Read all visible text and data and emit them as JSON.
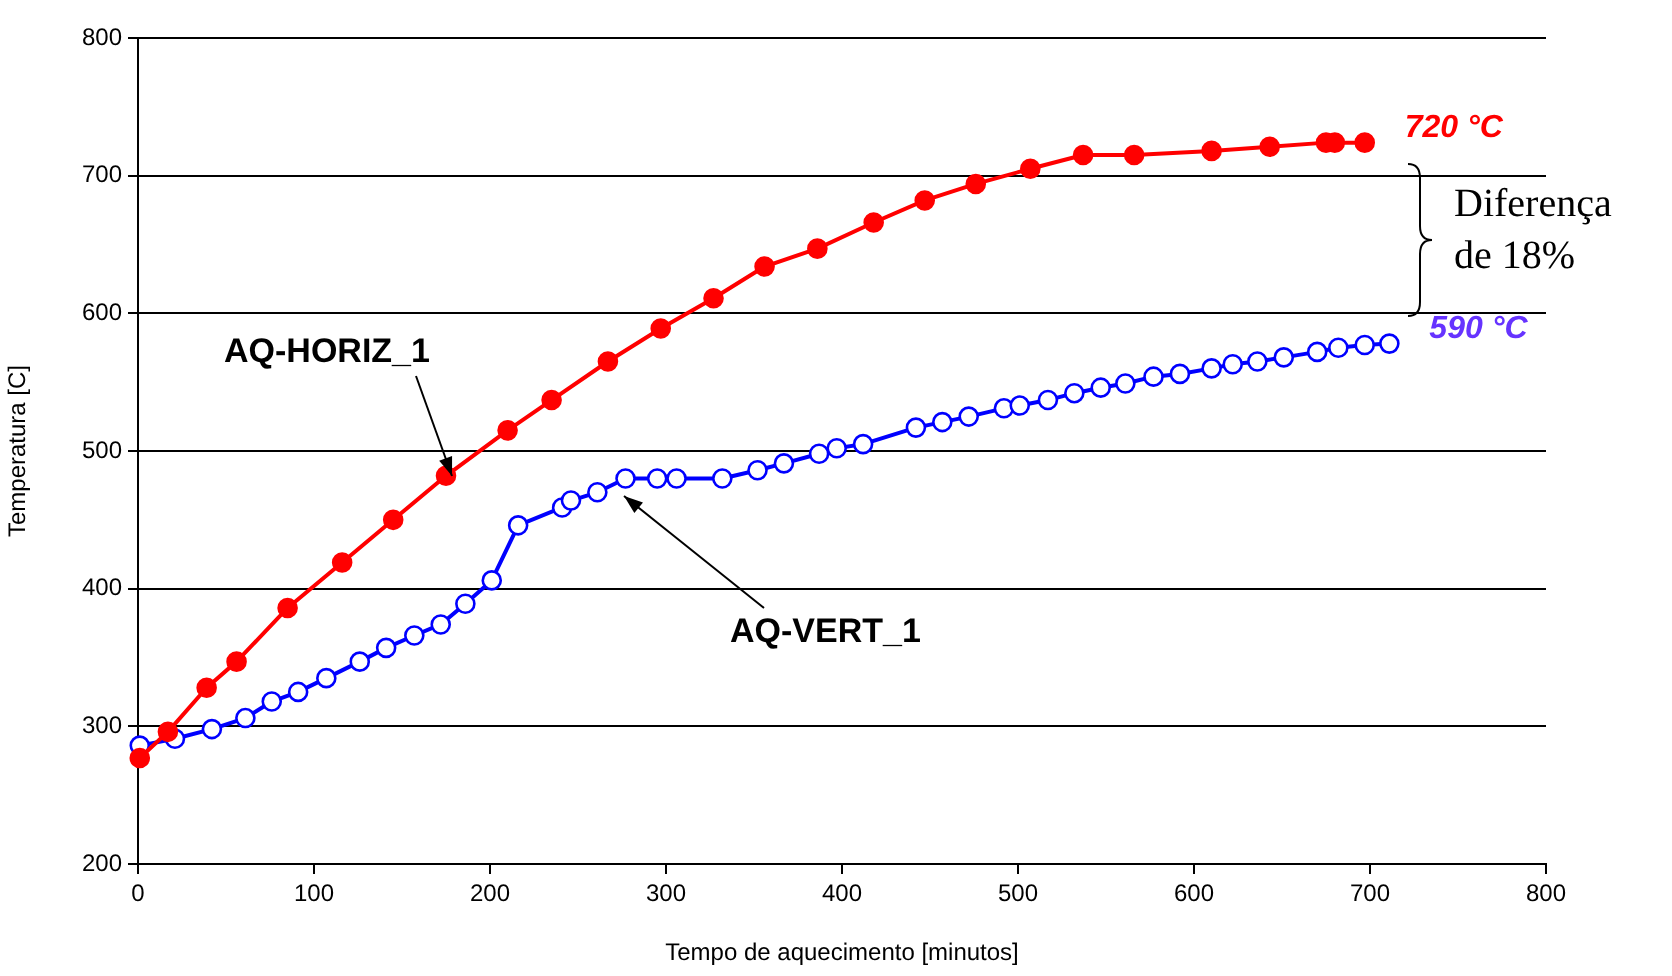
{
  "chart_data": {
    "type": "line",
    "xlabel": "Tempo de aquecimento [minutos]",
    "ylabel": "Temperatura [C]",
    "xlim": [
      0,
      800
    ],
    "xticks": [
      0,
      100,
      200,
      300,
      400,
      500,
      600,
      700,
      800
    ],
    "ylim": [
      200,
      800
    ],
    "yticks": [
      200,
      300,
      400,
      500,
      600,
      700,
      800
    ],
    "grid": "y",
    "legend": false,
    "marker": "circle",
    "line_style": "solid",
    "series": [
      {
        "name": "AQ-HORIZ_1",
        "color": "#ff0000",
        "x": [
          1,
          17,
          39,
          56,
          85,
          116,
          145,
          175,
          210,
          235,
          267,
          297,
          327,
          356,
          386,
          418,
          447,
          476,
          507,
          537,
          566,
          610,
          643,
          675,
          680,
          697
        ],
        "values": [
          277,
          296,
          328,
          347,
          386,
          419,
          450,
          482,
          515,
          537,
          565,
          589,
          611,
          634,
          647,
          666,
          682,
          694,
          705,
          715,
          715,
          718,
          721,
          724,
          724,
          724
        ]
      },
      {
        "name": "AQ-VERT_1",
        "color": "#0000ff",
        "x": [
          1,
          21,
          42,
          61,
          76,
          91,
          107,
          126,
          141,
          157,
          172,
          186,
          201,
          216,
          241,
          246,
          261,
          277,
          295,
          306,
          332,
          352,
          367,
          387,
          397,
          412,
          442,
          457,
          472,
          492,
          501,
          517,
          532,
          547,
          561,
          577,
          592,
          610,
          622,
          636,
          651,
          670,
          682,
          697,
          711
        ],
        "values": [
          286,
          291,
          298,
          306,
          318,
          325,
          335,
          347,
          357,
          366,
          374,
          389,
          406,
          446,
          459,
          464,
          470,
          480,
          480,
          480,
          480,
          486,
          491,
          498,
          502,
          505,
          517,
          521,
          525,
          531,
          533,
          537,
          542,
          546,
          549,
          554,
          556,
          560,
          563,
          565,
          568,
          572,
          575,
          577,
          578
        ]
      }
    ],
    "annotations": [
      {
        "text": "720 °C",
        "x": 697,
        "y": 724
      },
      {
        "text": "590 °C",
        "x": 711,
        "y": 578
      },
      "Diferença de 18%"
    ]
  }
}
